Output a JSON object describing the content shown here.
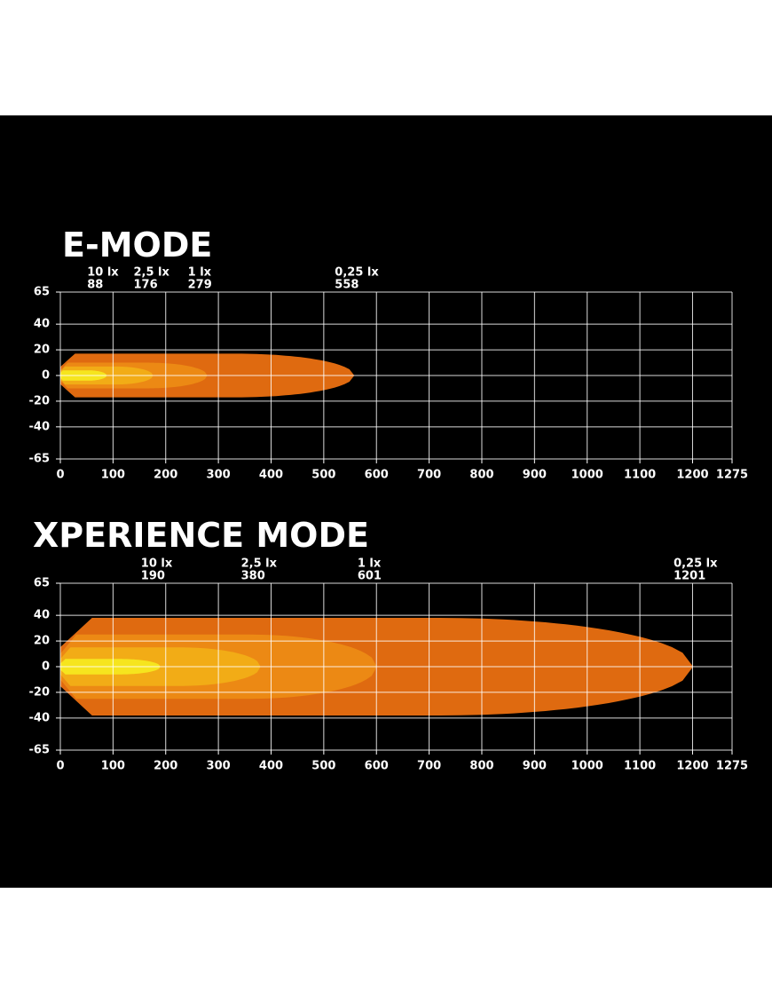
{
  "chart_data": [
    {
      "type": "isolux",
      "title": "E-MODE",
      "series": [
        {
          "name": "10 lx",
          "distance": 88,
          "halfwidth": 4,
          "color": "#f6e51e"
        },
        {
          "name": "2,5 lx",
          "distance": 176,
          "halfwidth": 7,
          "color": "#f2ac16"
        },
        {
          "name": "1 lx",
          "distance": 279,
          "halfwidth": 10,
          "color": "#ec8914"
        },
        {
          "name": "0,25 lx",
          "distance": 558,
          "halfwidth": 17,
          "color": "#df6a10"
        }
      ],
      "xlim": [
        0,
        1275
      ],
      "ylim": [
        -65,
        65
      ],
      "xticks": [
        0,
        100,
        200,
        300,
        400,
        500,
        600,
        700,
        800,
        900,
        1000,
        1100,
        1200,
        1275
      ],
      "yticks": [
        65,
        40,
        20,
        0,
        -20,
        -40,
        -65
      ],
      "grid": true
    },
    {
      "type": "isolux",
      "title": "XPERIENCE MODE",
      "series": [
        {
          "name": "10 lx",
          "distance": 190,
          "halfwidth": 6,
          "color": "#f6e51e"
        },
        {
          "name": "2,5 lx",
          "distance": 380,
          "halfwidth": 15,
          "color": "#f2ac16"
        },
        {
          "name": "1 lx",
          "distance": 601,
          "halfwidth": 25,
          "color": "#ec8914"
        },
        {
          "name": "0,25 lx",
          "distance": 1201,
          "halfwidth": 38,
          "color": "#df6a10"
        }
      ],
      "xlim": [
        0,
        1275
      ],
      "ylim": [
        -65,
        65
      ],
      "xticks": [
        0,
        100,
        200,
        300,
        400,
        500,
        600,
        700,
        800,
        900,
        1000,
        1100,
        1200,
        1275
      ],
      "yticks": [
        65,
        40,
        20,
        0,
        -20,
        -40,
        -65
      ],
      "grid": true
    }
  ]
}
